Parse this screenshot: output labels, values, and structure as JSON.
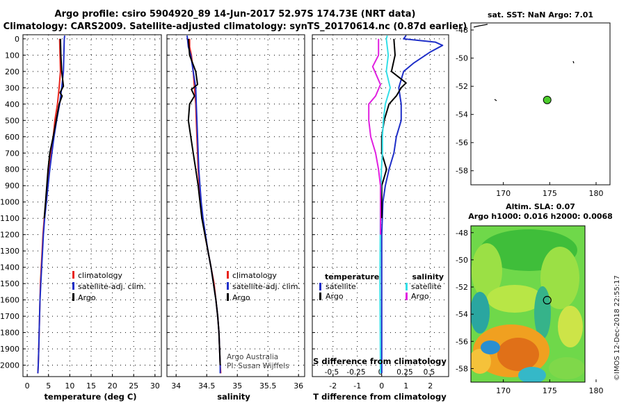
{
  "title": {
    "line1": "Argo profile: csiro 5904920_89 14-Jun-2017 52.97S 174.73E (NRT data)",
    "line2": "Climatology: CARS2009. Satellite-adjusted climatology: synTS_20170614.nc (0.87d earlier)"
  },
  "colors": {
    "climatology": "#e8241c",
    "satellite": "#1f2fc8",
    "argo": "#000000",
    "sal_satellite": "#33dfe8",
    "sal_argo": "#e020e0",
    "float_marker": "#4ccc2c"
  },
  "credits": {
    "note1": "Argo Australia",
    "note2": "PI: Susan Wijffels",
    "watermark": "©IMOS 12-Dec-2018 22:55:17"
  },
  "chart_data": [
    {
      "type": "line",
      "id": "temperature",
      "xlabel": "temperature (deg C)",
      "xlim": [
        -1,
        31.5
      ],
      "xticks": [
        0,
        5,
        10,
        15,
        20,
        25,
        30
      ],
      "ylim": [
        2070,
        -25
      ],
      "yticks": [
        0,
        100,
        200,
        300,
        400,
        500,
        600,
        700,
        800,
        900,
        1000,
        1100,
        1200,
        1300,
        1400,
        1500,
        1600,
        1700,
        1800,
        1900,
        2000
      ],
      "grid": true,
      "legend": {
        "position": "lower-right",
        "entries": [
          "climatology",
          "satellite-adj. clim.",
          "Argo"
        ]
      },
      "series": [
        {
          "name": "climatology",
          "color": "#e8241c",
          "points": [
            [
              7.6,
              0
            ],
            [
              7.7,
              100
            ],
            [
              7.8,
              200
            ],
            [
              7.5,
              300
            ],
            [
              7.1,
              400
            ],
            [
              6.5,
              500
            ],
            [
              6.1,
              600
            ],
            [
              5.6,
              700
            ],
            [
              5.2,
              800
            ],
            [
              4.8,
              900
            ],
            [
              4.4,
              1000
            ],
            [
              4.0,
              1100
            ],
            [
              3.7,
              1200
            ],
            [
              3.5,
              1300
            ],
            [
              3.3,
              1400
            ],
            [
              3.1,
              1500
            ],
            [
              3.0,
              1600
            ],
            [
              2.9,
              1700
            ],
            [
              2.8,
              1800
            ],
            [
              2.7,
              1900
            ],
            [
              2.6,
              2000
            ],
            [
              2.5,
              2050
            ]
          ]
        },
        {
          "name": "satellite-adj. clim.",
          "color": "#1f2fc8",
          "points": [
            [
              8.8,
              -20
            ],
            [
              8.7,
              0
            ],
            [
              8.6,
              100
            ],
            [
              8.5,
              200
            ],
            [
              8.1,
              300
            ],
            [
              7.6,
              400
            ],
            [
              6.9,
              500
            ],
            [
              6.3,
              600
            ],
            [
              5.8,
              700
            ],
            [
              5.3,
              800
            ],
            [
              4.9,
              900
            ],
            [
              4.5,
              1000
            ],
            [
              4.1,
              1100
            ],
            [
              3.8,
              1200
            ],
            [
              3.6,
              1300
            ],
            [
              3.4,
              1400
            ],
            [
              3.2,
              1500
            ],
            [
              3.0,
              1600
            ],
            [
              2.9,
              1700
            ],
            [
              2.8,
              1800
            ],
            [
              2.7,
              1900
            ],
            [
              2.6,
              2000
            ],
            [
              2.5,
              2050
            ]
          ]
        },
        {
          "name": "Argo",
          "color": "#000000",
          "points": [
            [
              7.8,
              0
            ],
            [
              7.9,
              100
            ],
            [
              8.1,
              200
            ],
            [
              8.5,
              290
            ],
            [
              7.7,
              330
            ],
            [
              8.2,
              350
            ],
            [
              7.5,
              400
            ],
            [
              6.8,
              500
            ],
            [
              6.1,
              600
            ],
            [
              5.3,
              700
            ],
            [
              4.9,
              800
            ],
            [
              4.6,
              900
            ],
            [
              4.3,
              1000
            ],
            [
              4.0,
              1100
            ]
          ]
        }
      ]
    },
    {
      "type": "line",
      "id": "salinity",
      "xlabel": "salinity",
      "xlim": [
        33.85,
        36.1
      ],
      "xticks": [
        34,
        34.5,
        35,
        35.5,
        36
      ],
      "ylim": [
        2070,
        -25
      ],
      "grid": true,
      "legend": {
        "position": "lower-right",
        "entries": [
          "climatology",
          "satellite-adj. clim.",
          "Argo"
        ]
      },
      "series": [
        {
          "name": "climatology",
          "color": "#e8241c",
          "points": [
            [
              34.22,
              0
            ],
            [
              34.22,
              50
            ],
            [
              34.25,
              100
            ],
            [
              34.28,
              200
            ],
            [
              34.3,
              300
            ],
            [
              34.32,
              400
            ],
            [
              34.33,
              500
            ],
            [
              34.34,
              600
            ],
            [
              34.35,
              700
            ],
            [
              34.36,
              800
            ],
            [
              34.38,
              900
            ],
            [
              34.4,
              1000
            ],
            [
              34.43,
              1100
            ],
            [
              34.47,
              1200
            ],
            [
              34.52,
              1300
            ],
            [
              34.57,
              1400
            ],
            [
              34.62,
              1500
            ],
            [
              34.65,
              1600
            ],
            [
              34.68,
              1700
            ],
            [
              34.7,
              1800
            ],
            [
              34.71,
              1900
            ],
            [
              34.72,
              2000
            ],
            [
              34.73,
              2050
            ]
          ]
        },
        {
          "name": "satellite-adj. clim.",
          "color": "#1f2fc8",
          "points": [
            [
              34.18,
              -20
            ],
            [
              34.2,
              50
            ],
            [
              34.24,
              100
            ],
            [
              34.28,
              200
            ],
            [
              34.32,
              300
            ],
            [
              34.33,
              400
            ],
            [
              34.34,
              500
            ],
            [
              34.35,
              600
            ],
            [
              34.36,
              700
            ],
            [
              34.37,
              800
            ],
            [
              34.39,
              900
            ],
            [
              34.41,
              1000
            ],
            [
              34.44,
              1100
            ],
            [
              34.48,
              1200
            ],
            [
              34.52,
              1300
            ],
            [
              34.57,
              1400
            ],
            [
              34.61,
              1500
            ],
            [
              34.65,
              1600
            ],
            [
              34.68,
              1700
            ],
            [
              34.7,
              1800
            ],
            [
              34.71,
              1900
            ],
            [
              34.72,
              2000
            ],
            [
              34.72,
              2050
            ]
          ]
        },
        {
          "name": "Argo",
          "color": "#000000",
          "points": [
            [
              34.2,
              0
            ],
            [
              34.22,
              100
            ],
            [
              34.32,
              200
            ],
            [
              34.35,
              280
            ],
            [
              34.25,
              310
            ],
            [
              34.3,
              350
            ],
            [
              34.22,
              400
            ],
            [
              34.2,
              500
            ],
            [
              34.24,
              600
            ],
            [
              34.28,
              700
            ],
            [
              34.32,
              800
            ],
            [
              34.36,
              900
            ],
            [
              34.39,
              1000
            ],
            [
              34.42,
              1100
            ],
            [
              34.47,
              1200
            ],
            [
              34.52,
              1300
            ],
            [
              34.57,
              1400
            ],
            [
              34.61,
              1500
            ],
            [
              34.65,
              1600
            ],
            [
              34.68,
              1700
            ],
            [
              34.7,
              1800
            ],
            [
              34.71,
              1900
            ],
            [
              34.72,
              2000
            ]
          ]
        }
      ],
      "annotations": [
        "Argo Australia",
        "PI: Susan Wijffels"
      ]
    },
    {
      "type": "line",
      "id": "differences",
      "xlabel": "T difference from climatology",
      "xlim": [
        -2.85,
        2.75
      ],
      "xticks": [
        -2,
        -1,
        0,
        1,
        2
      ],
      "secondary_xlabel": "S difference from climatology",
      "secondary_xticks": [
        "-0.5",
        "-0.25",
        "0",
        "0.25",
        "0.5"
      ],
      "secondary_xlim": [
        -0.7,
        0.7
      ],
      "ylim": [
        2070,
        -25
      ],
      "grid": true,
      "legend": {
        "position": "lower",
        "groups": [
          {
            "heading": "temperature",
            "entries": [
              "satellite",
              "Argo"
            ]
          },
          {
            "heading": "salinity",
            "entries": [
              "satellite",
              "Argo"
            ]
          }
        ]
      },
      "series": [
        {
          "name": "satellite",
          "group": "temperature",
          "color": "#1f2fc8",
          "axis": "T",
          "points": [
            [
              1.0,
              -20
            ],
            [
              0.9,
              0
            ],
            [
              2.2,
              20
            ],
            [
              2.5,
              40
            ],
            [
              2.0,
              80
            ],
            [
              1.3,
              150
            ],
            [
              0.9,
              200
            ],
            [
              0.7,
              300
            ],
            [
              0.8,
              400
            ],
            [
              0.8,
              500
            ],
            [
              0.6,
              600
            ],
            [
              0.5,
              700
            ],
            [
              0.3,
              800
            ],
            [
              0.15,
              900
            ],
            [
              0.05,
              1000
            ],
            [
              0,
              1200
            ],
            [
              0,
              2050
            ]
          ]
        },
        {
          "name": "Argo",
          "group": "temperature",
          "color": "#000000",
          "axis": "T",
          "points": [
            [
              0.5,
              0
            ],
            [
              0.55,
              100
            ],
            [
              0.4,
              200
            ],
            [
              1.0,
              270
            ],
            [
              0.8,
              300
            ],
            [
              0.6,
              350
            ],
            [
              0.3,
              400
            ],
            [
              0.1,
              500
            ],
            [
              0.0,
              600
            ],
            [
              0.0,
              700
            ],
            [
              0.2,
              800
            ],
            [
              0.0,
              900
            ],
            [
              0.0,
              1100
            ]
          ]
        },
        {
          "name": "satellite",
          "group": "salinity",
          "color": "#33dfe8",
          "axis": "S",
          "points": [
            [
              0.07,
              -20
            ],
            [
              0.06,
              0
            ],
            [
              0.08,
              100
            ],
            [
              0.06,
              200
            ],
            [
              0.1,
              300
            ],
            [
              0.05,
              400
            ],
            [
              0.03,
              500
            ],
            [
              0.02,
              600
            ],
            [
              0.02,
              700
            ],
            [
              0.01,
              800
            ],
            [
              0.0,
              1000
            ],
            [
              -0.005,
              1500
            ],
            [
              0.0,
              2050
            ]
          ]
        },
        {
          "name": "Argo",
          "group": "salinity",
          "color": "#e020e0",
          "axis": "S",
          "points": [
            [
              -0.02,
              0
            ],
            [
              -0.02,
              100
            ],
            [
              -0.08,
              170
            ],
            [
              0.0,
              280
            ],
            [
              -0.05,
              350
            ],
            [
              -0.12,
              400
            ],
            [
              -0.12,
              500
            ],
            [
              -0.1,
              600
            ],
            [
              -0.05,
              700
            ],
            [
              -0.02,
              800
            ],
            [
              0.0,
              900
            ],
            [
              0.0,
              1000
            ],
            [
              0.0,
              1200
            ]
          ]
        }
      ]
    },
    {
      "type": "scatter",
      "id": "sst_map",
      "title": "sat. SST: NaN Argo: 7.01",
      "xlim": [
        166.5,
        181.5
      ],
      "ylim": [
        -59,
        -47.5
      ],
      "xticks": [
        170,
        175,
        180
      ],
      "yticks": [
        -48,
        -50,
        -52,
        -54,
        -56,
        -58
      ],
      "float_position": [
        174.73,
        -52.97
      ]
    },
    {
      "type": "heatmap",
      "id": "sla_map",
      "title_line1": "Altim. SLA: 0.07",
      "title_line2": "Argo h1000: 0.016 h2000: 0.0068",
      "xlim": [
        166.5,
        181.5
      ],
      "ylim": [
        -59,
        -47.5
      ],
      "xticks": [
        170,
        175,
        180
      ],
      "yticks": [
        -48,
        -50,
        -52,
        -54,
        -56,
        -58
      ],
      "float_position": [
        174.73,
        -52.97
      ]
    }
  ]
}
